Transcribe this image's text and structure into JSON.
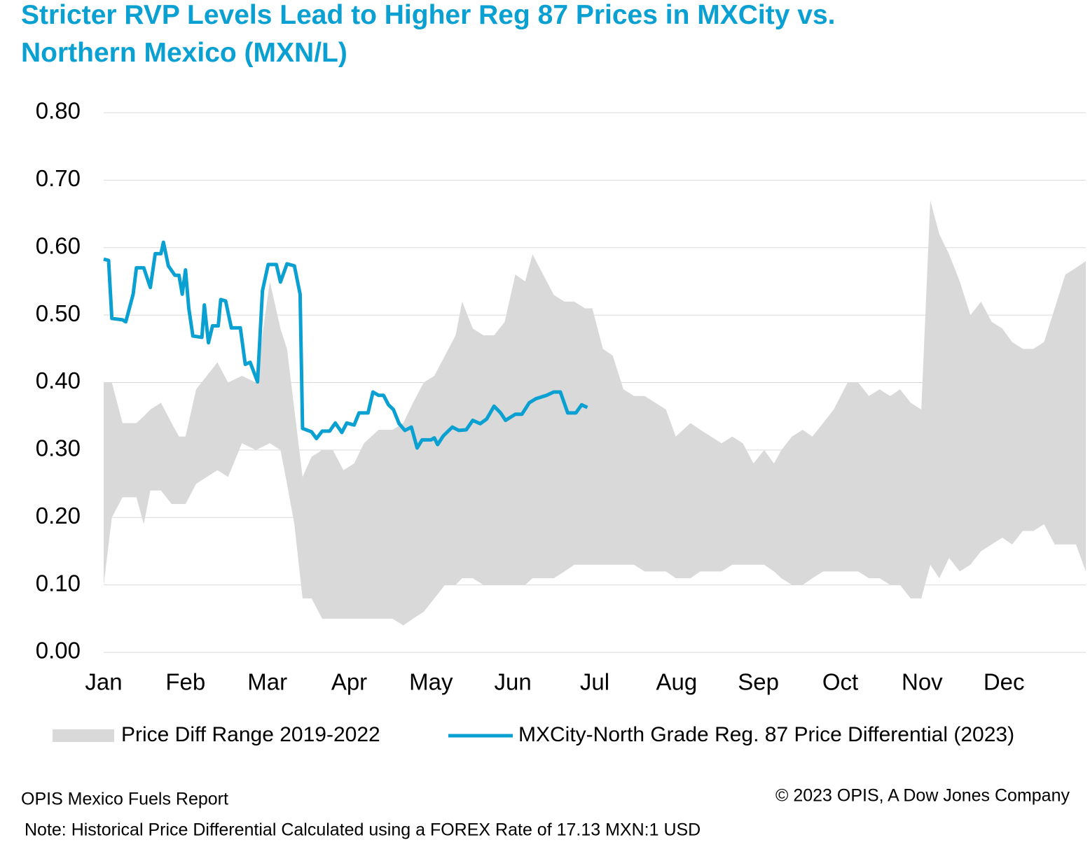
{
  "chart_data": {
    "type": "line",
    "title_lines": [
      "Stricter RVP Levels Lead to Higher Reg 87 Prices in MXCity vs.",
      "Northern Mexico (MXN/L)"
    ],
    "xlim": [
      0,
      12
    ],
    "xticks": [
      {
        "value": 0,
        "label": "Jan"
      },
      {
        "value": 1,
        "label": "Feb"
      },
      {
        "value": 2,
        "label": "Mar"
      },
      {
        "value": 3,
        "label": "Apr"
      },
      {
        "value": 4,
        "label": "May"
      },
      {
        "value": 5,
        "label": "Jun"
      },
      {
        "value": 6,
        "label": "Jul"
      },
      {
        "value": 7,
        "label": "Aug"
      },
      {
        "value": 8,
        "label": "Sep"
      },
      {
        "value": 9,
        "label": "Oct"
      },
      {
        "value": 10,
        "label": "Nov"
      },
      {
        "value": 11,
        "label": "Dec"
      }
    ],
    "ylim": [
      0,
      0.8
    ],
    "yticks": [
      {
        "value": 0,
        "label": "0.00"
      },
      {
        "value": 0.1,
        "label": "0.10"
      },
      {
        "value": 0.2,
        "label": "0.20"
      },
      {
        "value": 0.3,
        "label": "0.30"
      },
      {
        "value": 0.4,
        "label": "0.40"
      },
      {
        "value": 0.5,
        "label": "0.50"
      },
      {
        "value": 0.6,
        "label": "0.60"
      },
      {
        "value": 0.7,
        "label": "0.70"
      },
      {
        "value": 0.8,
        "label": "0.80"
      }
    ],
    "grid": true,
    "series": [
      {
        "name": "Price Diff Range 2019-2022",
        "type": "range",
        "color": "#d9d9d9",
        "x": [
          0,
          0.1,
          0.23,
          0.4,
          0.49,
          0.57,
          0.7,
          0.83,
          0.92,
          1.0,
          1.13,
          1.26,
          1.39,
          1.52,
          1.69,
          1.86,
          2.03,
          2.16,
          2.24,
          2.33,
          2.43,
          2.54,
          2.67,
          2.8,
          2.93,
          3.06,
          3.18,
          3.36,
          3.53,
          3.66,
          3.78,
          3.91,
          4.04,
          4.17,
          4.3,
          4.38,
          4.51,
          4.64,
          4.77,
          4.9,
          5.03,
          5.15,
          5.24,
          5.37,
          5.5,
          5.63,
          5.75,
          5.88,
          5.97,
          6.1,
          6.22,
          6.35,
          6.48,
          6.61,
          6.74,
          6.87,
          6.99,
          7.17,
          7.29,
          7.42,
          7.55,
          7.68,
          7.81,
          7.94,
          8.07,
          8.19,
          8.28,
          8.41,
          8.54,
          8.66,
          8.79,
          8.92,
          9.09,
          9.22,
          9.35,
          9.48,
          9.61,
          9.73,
          9.86,
          9.99,
          10.1,
          10.21,
          10.33,
          10.46,
          10.59,
          10.72,
          10.85,
          10.98,
          11.1,
          11.23,
          11.36,
          11.49,
          11.62,
          11.75,
          11.88,
          12.0
        ],
        "high": [
          0.4,
          0.4,
          0.34,
          0.34,
          0.35,
          0.36,
          0.37,
          0.34,
          0.32,
          0.32,
          0.39,
          0.41,
          0.43,
          0.4,
          0.41,
          0.4,
          0.55,
          0.48,
          0.45,
          0.36,
          0.26,
          0.29,
          0.3,
          0.3,
          0.27,
          0.28,
          0.31,
          0.33,
          0.33,
          0.34,
          0.37,
          0.4,
          0.41,
          0.44,
          0.47,
          0.52,
          0.48,
          0.47,
          0.47,
          0.49,
          0.56,
          0.55,
          0.59,
          0.56,
          0.53,
          0.52,
          0.52,
          0.51,
          0.51,
          0.45,
          0.44,
          0.39,
          0.38,
          0.38,
          0.37,
          0.36,
          0.32,
          0.34,
          0.33,
          0.32,
          0.31,
          0.32,
          0.31,
          0.28,
          0.3,
          0.28,
          0.3,
          0.32,
          0.33,
          0.32,
          0.34,
          0.36,
          0.4,
          0.4,
          0.38,
          0.39,
          0.38,
          0.39,
          0.37,
          0.36,
          0.67,
          0.62,
          0.59,
          0.55,
          0.5,
          0.52,
          0.49,
          0.48,
          0.46,
          0.45,
          0.45,
          0.46,
          0.51,
          0.56,
          0.57,
          0.58
        ],
        "low": [
          0.1,
          0.2,
          0.23,
          0.23,
          0.19,
          0.24,
          0.24,
          0.22,
          0.22,
          0.22,
          0.25,
          0.26,
          0.27,
          0.26,
          0.31,
          0.3,
          0.31,
          0.3,
          0.25,
          0.19,
          0.08,
          0.08,
          0.05,
          0.05,
          0.05,
          0.05,
          0.05,
          0.05,
          0.05,
          0.04,
          0.05,
          0.06,
          0.08,
          0.1,
          0.1,
          0.11,
          0.11,
          0.1,
          0.1,
          0.1,
          0.1,
          0.1,
          0.11,
          0.11,
          0.11,
          0.12,
          0.13,
          0.13,
          0.13,
          0.13,
          0.13,
          0.13,
          0.13,
          0.12,
          0.12,
          0.12,
          0.11,
          0.11,
          0.12,
          0.12,
          0.12,
          0.13,
          0.13,
          0.13,
          0.13,
          0.12,
          0.11,
          0.1,
          0.1,
          0.11,
          0.12,
          0.12,
          0.12,
          0.12,
          0.11,
          0.11,
          0.1,
          0.1,
          0.08,
          0.08,
          0.13,
          0.11,
          0.14,
          0.12,
          0.13,
          0.15,
          0.16,
          0.17,
          0.16,
          0.18,
          0.18,
          0.19,
          0.16,
          0.16,
          0.16,
          0.12
        ]
      },
      {
        "name": "MXCity-North Grade Reg. 87 Price Differential (2023)",
        "type": "line",
        "color": "#0aa0d2",
        "x": [
          0,
          0.06,
          0.1,
          0.23,
          0.27,
          0.36,
          0.4,
          0.49,
          0.57,
          0.63,
          0.7,
          0.73,
          0.79,
          0.87,
          0.92,
          0.96,
          1.0,
          1.04,
          1.09,
          1.2,
          1.23,
          1.28,
          1.33,
          1.4,
          1.43,
          1.49,
          1.56,
          1.67,
          1.73,
          1.79,
          1.88,
          1.94,
          2.01,
          2.11,
          2.16,
          2.24,
          2.33,
          2.4,
          2.43,
          2.54,
          2.6,
          2.67,
          2.76,
          2.83,
          2.91,
          2.97,
          3.06,
          3.12,
          3.23,
          3.29,
          3.36,
          3.42,
          3.48,
          3.54,
          3.61,
          3.68,
          3.76,
          3.83,
          3.89,
          4.0,
          4.04,
          4.08,
          4.15,
          4.26,
          4.34,
          4.43,
          4.51,
          4.6,
          4.68,
          4.77,
          4.85,
          4.91,
          5.03,
          5.11,
          5.2,
          5.28,
          5.41,
          5.5,
          5.58,
          5.67,
          5.77,
          5.84,
          5.91
        ],
        "values": [
          0.583,
          0.581,
          0.495,
          0.493,
          0.49,
          0.531,
          0.57,
          0.57,
          0.541,
          0.591,
          0.591,
          0.608,
          0.573,
          0.559,
          0.559,
          0.531,
          0.567,
          0.51,
          0.469,
          0.467,
          0.515,
          0.459,
          0.484,
          0.484,
          0.523,
          0.521,
          0.481,
          0.481,
          0.427,
          0.43,
          0.401,
          0.536,
          0.575,
          0.575,
          0.549,
          0.576,
          0.573,
          0.531,
          0.332,
          0.327,
          0.317,
          0.328,
          0.328,
          0.34,
          0.326,
          0.34,
          0.337,
          0.355,
          0.355,
          0.386,
          0.381,
          0.381,
          0.367,
          0.36,
          0.339,
          0.329,
          0.334,
          0.303,
          0.315,
          0.315,
          0.318,
          0.308,
          0.321,
          0.334,
          0.329,
          0.33,
          0.344,
          0.339,
          0.346,
          0.365,
          0.355,
          0.344,
          0.353,
          0.353,
          0.37,
          0.376,
          0.381,
          0.386,
          0.386,
          0.355,
          0.355,
          0.367,
          0.363
        ]
      }
    ],
    "source": "OPIS Mexico Fuels Report",
    "copyright": "© 2023 OPIS, A Dow Jones Company",
    "note": "Note: Historical Price Differential Calculated using a FOREX Rate of 17.13 MXN:1 USD"
  }
}
